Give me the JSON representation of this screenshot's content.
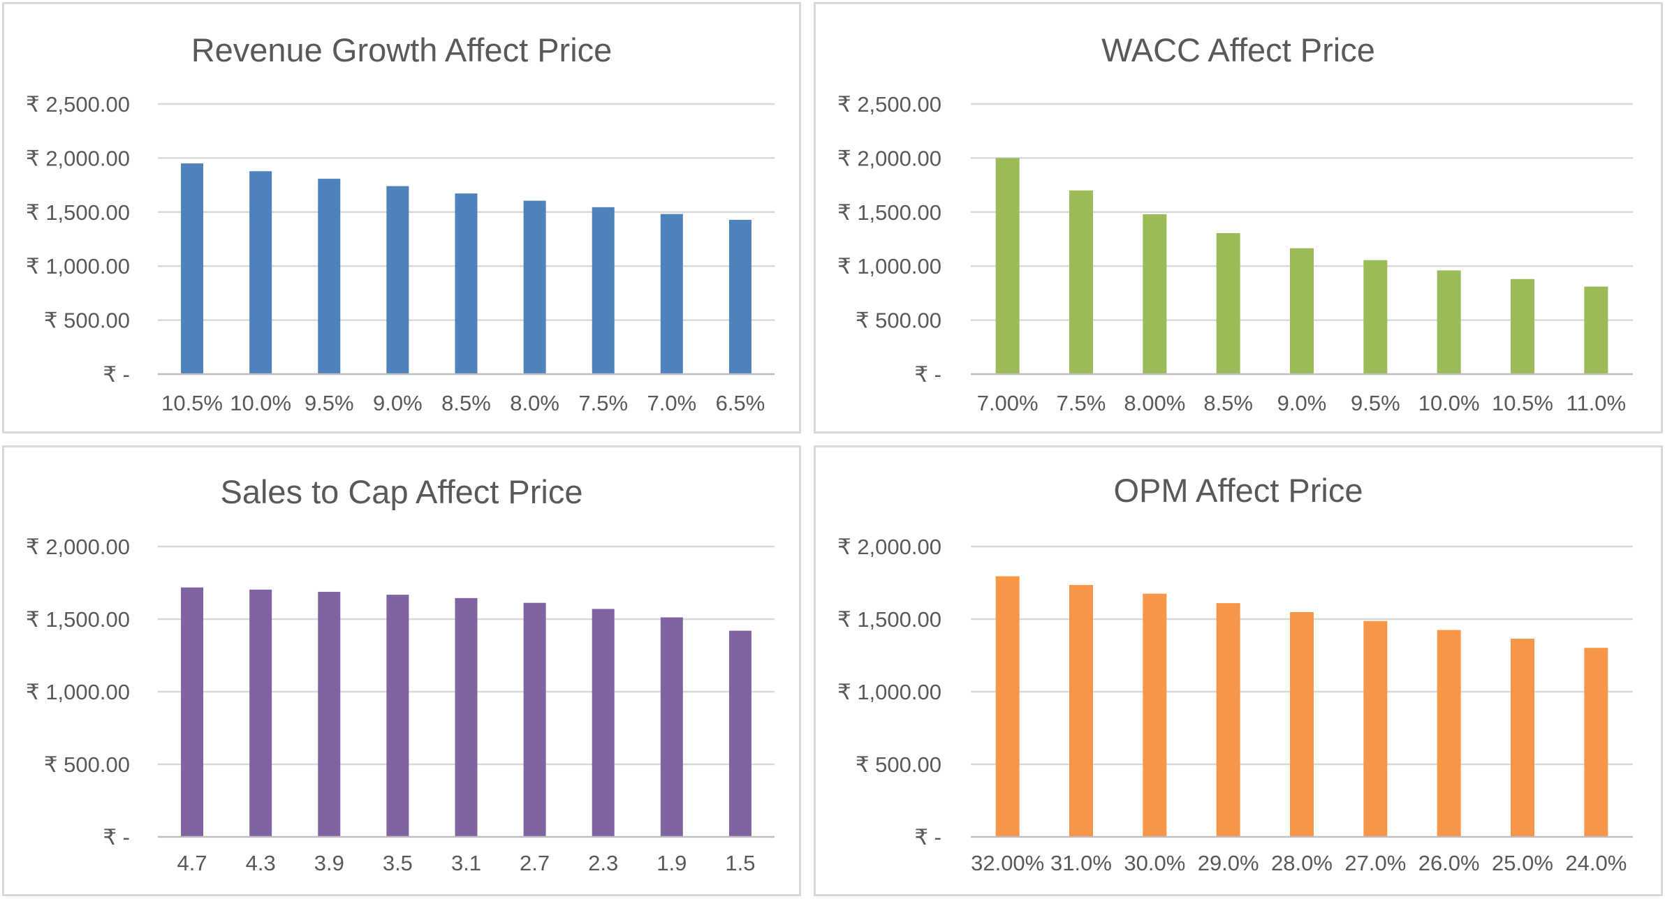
{
  "chart_data": [
    {
      "type": "bar",
      "title": "Revenue Growth Affect Price",
      "color": "#4f81bd",
      "categories": [
        "10.5%",
        "10.0%",
        "9.5%",
        "9.0%",
        "8.5%",
        "8.0%",
        "7.5%",
        "7.0%",
        "6.5%"
      ],
      "values": [
        1950,
        1878,
        1808,
        1740,
        1672,
        1605,
        1545,
        1482,
        1428
      ],
      "ylim": [
        0,
        2500
      ],
      "y_ticks": [
        0,
        500,
        1000,
        1500,
        2000,
        2500
      ],
      "y_tick_labels": [
        "₹ -",
        "₹ 500.00",
        "₹ 1,000.00",
        "₹ 1,500.00",
        "₹ 2,000.00",
        "₹ 2,500.00"
      ],
      "grid": true,
      "legend": "none"
    },
    {
      "type": "bar",
      "title": "WACC Affect Price",
      "color": "#9bbb59",
      "categories": [
        "7.00%",
        "7.5%",
        "8.00%",
        "8.5%",
        "9.0%",
        "9.5%",
        "10.0%",
        "10.5%",
        "11.0%"
      ],
      "values": [
        2000,
        1700,
        1480,
        1305,
        1165,
        1055,
        960,
        880,
        810
      ],
      "ylim": [
        0,
        2500
      ],
      "y_ticks": [
        0,
        500,
        1000,
        1500,
        2000,
        2500
      ],
      "y_tick_labels": [
        "₹ -",
        "₹ 500.00",
        "₹ 1,000.00",
        "₹ 1,500.00",
        "₹ 2,000.00",
        "₹ 2,500.00"
      ],
      "grid": true,
      "legend": "none"
    },
    {
      "type": "bar",
      "title": "Sales to Cap Affect Price",
      "color": "#8064a2",
      "categories": [
        "4.7",
        "4.3",
        "3.9",
        "3.5",
        "3.1",
        "2.7",
        "2.3",
        "1.9",
        "1.5"
      ],
      "values": [
        1718,
        1703,
        1688,
        1668,
        1645,
        1612,
        1570,
        1512,
        1420
      ],
      "ylim": [
        0,
        2000
      ],
      "y_ticks": [
        0,
        500,
        1000,
        1500,
        2000
      ],
      "y_tick_labels": [
        "₹ -",
        "₹ 500.00",
        "₹ 1,000.00",
        "₹ 1,500.00",
        "₹ 2,000.00"
      ],
      "grid": true,
      "legend": "none"
    },
    {
      "type": "bar",
      "title": "OPM Affect Price",
      "color": "#f79646",
      "categories": [
        "32.00%",
        "31.0%",
        "30.0%",
        "29.0%",
        "28.0%",
        "27.0%",
        "26.0%",
        "25.0%",
        "24.0%"
      ],
      "values": [
        1795,
        1735,
        1675,
        1610,
        1548,
        1487,
        1425,
        1365,
        1302
      ],
      "ylim": [
        0,
        2000
      ],
      "y_ticks": [
        0,
        500,
        1000,
        1500,
        2000
      ],
      "y_tick_labels": [
        "₹ -",
        "₹ 500.00",
        "₹ 1,000.00",
        "₹ 1,500.00",
        "₹ 2,000.00"
      ],
      "grid": true,
      "legend": "none"
    }
  ]
}
